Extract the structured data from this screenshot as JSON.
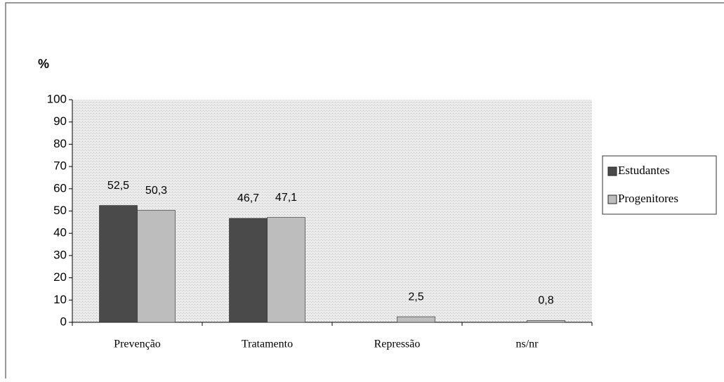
{
  "chart_data": {
    "type": "bar",
    "y_label": "%",
    "categories": [
      "Prevenção",
      "Tratamento",
      "Repressão",
      "ns/nr"
    ],
    "series": [
      {
        "name": "Estudantes",
        "color": "#4a4a4a",
        "values": [
          52.5,
          46.7,
          null,
          null
        ],
        "value_labels": [
          "52,5",
          "46,7",
          null,
          null
        ]
      },
      {
        "name": "Progenitores",
        "color": "#bdbdbd",
        "values": [
          50.3,
          47.1,
          2.5,
          0.8
        ],
        "value_labels": [
          "50,3",
          "47,1",
          "2,5",
          "0,8"
        ]
      }
    ],
    "ylim": [
      0,
      100
    ],
    "yticks": [
      0,
      10,
      20,
      30,
      40,
      50,
      60,
      70,
      80,
      90,
      100
    ],
    "legend": "right"
  }
}
